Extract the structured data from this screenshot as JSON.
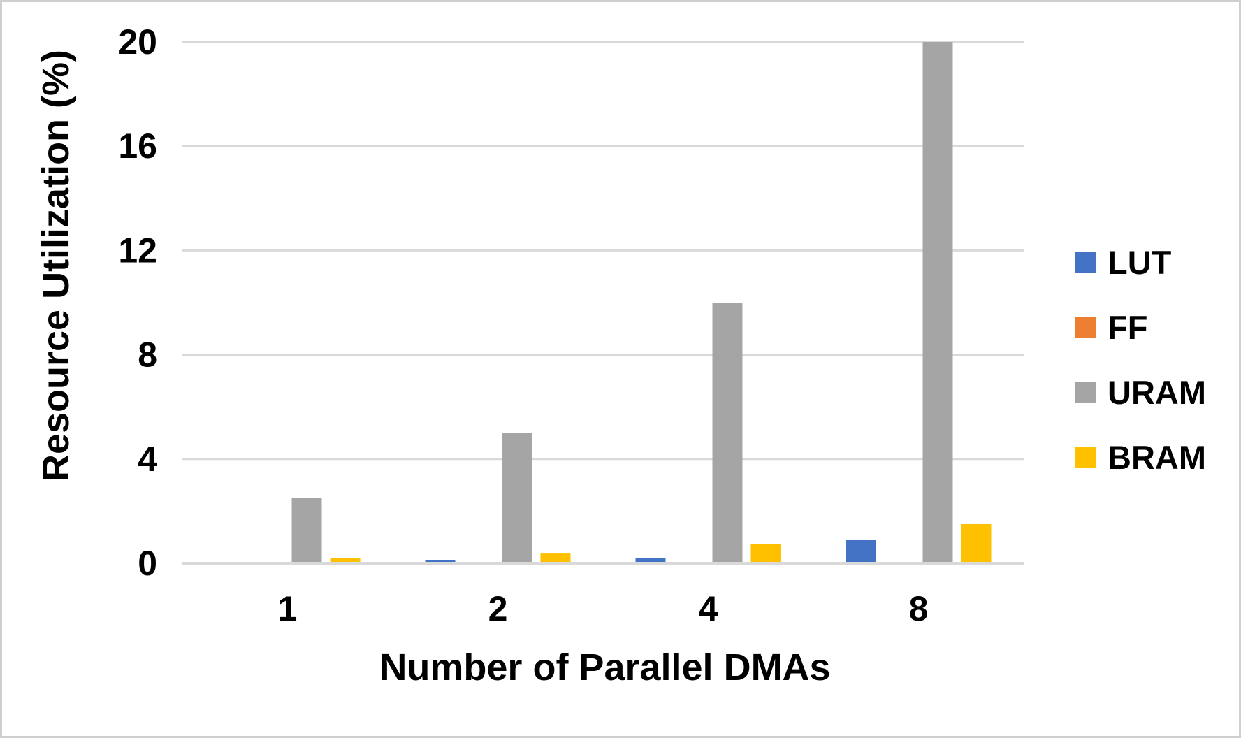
{
  "chart_data": {
    "type": "bar",
    "title": "",
    "xlabel": "Number of Parallel DMAs",
    "ylabel": "Resource Utilization (%)",
    "categories": [
      "1",
      "2",
      "4",
      "8"
    ],
    "series": [
      {
        "name": "LUT",
        "color": "#4472C4",
        "values": [
          0.05,
          0.12,
          0.2,
          0.9
        ]
      },
      {
        "name": "FF",
        "color": "#ED7D31",
        "values": [
          0.03,
          0.03,
          0.03,
          0.03
        ]
      },
      {
        "name": "URAM",
        "color": "#A5A5A5",
        "values": [
          2.5,
          5.0,
          10.0,
          20.0
        ]
      },
      {
        "name": "BRAM",
        "color": "#FFC000",
        "values": [
          0.2,
          0.4,
          0.75,
          1.5
        ]
      }
    ],
    "ylim": [
      0,
      20
    ],
    "yticks": [
      0,
      4,
      8,
      12,
      16,
      20
    ],
    "grid": true,
    "legend_position": "right",
    "gridline_color": "#D9D9D9",
    "axis_line_color": "#D9D9D9",
    "text_color": "#000000"
  }
}
